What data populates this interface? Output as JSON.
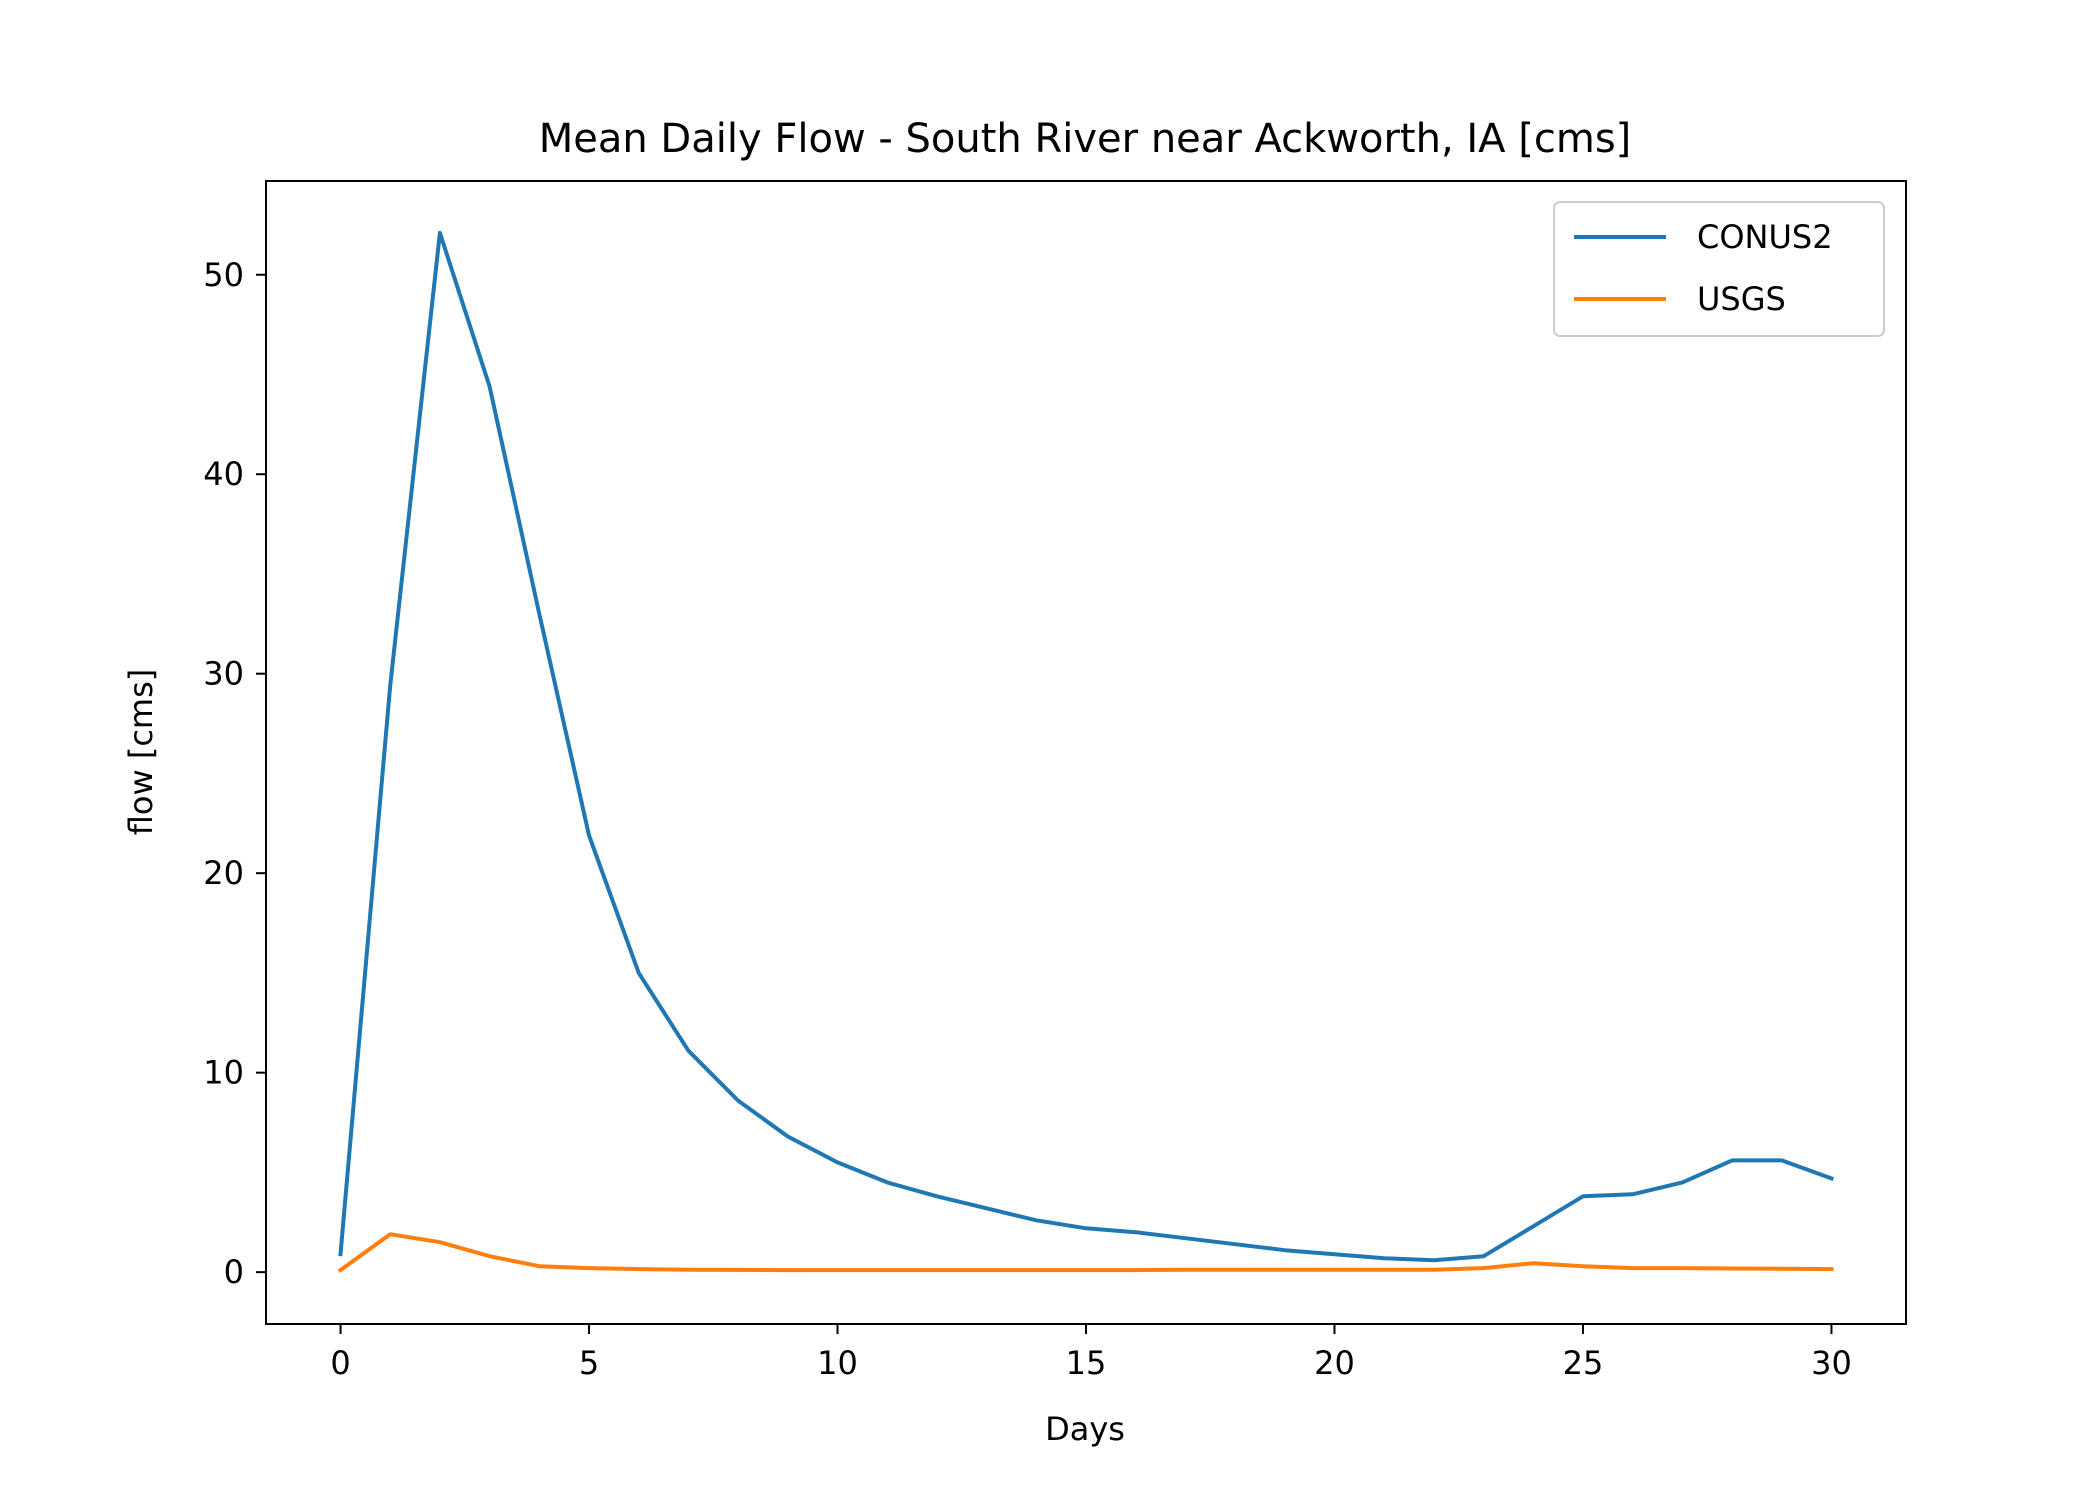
{
  "chart_data": {
    "type": "line",
    "title": "Mean Daily Flow - South River near Ackworth, IA [cms]",
    "xlabel": "Days",
    "ylabel": "flow [cms]",
    "xlim": [
      -1.5,
      31.5
    ],
    "ylim": [
      -2.6,
      54.7
    ],
    "x_ticks": [
      0,
      5,
      10,
      15,
      20,
      25,
      30
    ],
    "y_ticks": [
      0,
      10,
      20,
      30,
      40,
      50
    ],
    "grid": false,
    "legend_position": "upper right",
    "x": [
      0,
      1,
      2,
      3,
      4,
      5,
      6,
      7,
      8,
      9,
      10,
      11,
      12,
      13,
      14,
      15,
      16,
      17,
      18,
      19,
      20,
      21,
      22,
      23,
      24,
      25,
      26,
      27,
      28,
      29,
      30
    ],
    "series": [
      {
        "name": "CONUS2",
        "color": "#1f77b4",
        "values": [
          0.9,
          29.4,
          52.1,
          44.4,
          33.0,
          21.9,
          15.0,
          11.1,
          8.6,
          6.8,
          5.5,
          4.5,
          3.8,
          3.2,
          2.6,
          2.2,
          2.0,
          1.7,
          1.4,
          1.1,
          0.9,
          0.7,
          0.6,
          0.8,
          2.3,
          3.8,
          3.9,
          4.5,
          5.6,
          5.6,
          4.7
        ]
      },
      {
        "name": "USGS",
        "color": "#ff7f0e",
        "values": [
          0.1,
          1.9,
          1.5,
          0.8,
          0.3,
          0.2,
          0.15,
          0.12,
          0.11,
          0.1,
          0.1,
          0.1,
          0.1,
          0.1,
          0.1,
          0.1,
          0.1,
          0.12,
          0.12,
          0.12,
          0.12,
          0.12,
          0.12,
          0.2,
          0.45,
          0.3,
          0.2,
          0.2,
          0.18,
          0.17,
          0.15
        ]
      }
    ]
  }
}
